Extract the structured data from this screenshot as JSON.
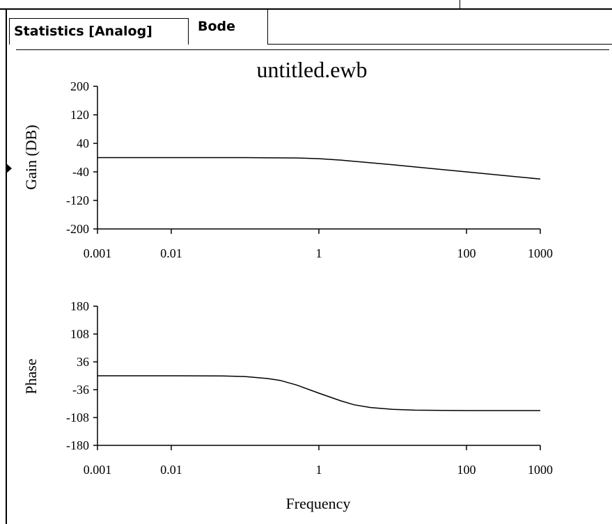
{
  "tabs": [
    {
      "label": "Statistics [Analog]"
    },
    {
      "label": "Bode"
    }
  ],
  "colors": {
    "line": "#000000",
    "background": "#ffffff"
  },
  "chart_data": [
    {
      "type": "line",
      "title": "untitled.ewb",
      "ylabel": "Gain (DB)",
      "xlabel": "",
      "x_scale": "log",
      "xlim": [
        0.001,
        1000
      ],
      "ylim": [
        -200,
        200
      ],
      "x_ticks": [
        0.001,
        0.01,
        1,
        100,
        1000
      ],
      "x_tick_labels": [
        "0.001",
        "0.01",
        "1",
        "100",
        "1000"
      ],
      "y_ticks": [
        200,
        120,
        40,
        -40,
        -120,
        -200
      ],
      "y_tick_labels": [
        "200",
        "120",
        "40",
        "-40",
        "-120",
        "-200"
      ],
      "series": [
        {
          "x": [
            0.001,
            0.01,
            0.1,
            0.5,
            1,
            2,
            10,
            100,
            1000
          ],
          "values": [
            0,
            0,
            0,
            -1,
            -3,
            -7,
            -20,
            -40,
            -60
          ]
        }
      ]
    },
    {
      "type": "line",
      "title": "",
      "ylabel": "Phase",
      "xlabel": "Frequency",
      "x_scale": "log",
      "xlim": [
        0.001,
        1000
      ],
      "ylim": [
        -180,
        180
      ],
      "x_ticks": [
        0.001,
        0.01,
        1,
        100,
        1000
      ],
      "x_tick_labels": [
        "0.001",
        "0.01",
        "1",
        "100",
        "1000"
      ],
      "y_ticks": [
        180,
        108,
        36,
        -36,
        -108,
        -180
      ],
      "y_tick_labels": [
        "180",
        "108",
        "36",
        "-36",
        "-108",
        "-180"
      ],
      "series": [
        {
          "x": [
            0.001,
            0.01,
            0.05,
            0.1,
            0.2,
            0.3,
            0.5,
            1,
            2,
            3,
            5,
            10,
            20,
            100,
            1000
          ],
          "values": [
            0,
            0,
            -0.5,
            -2,
            -7,
            -12,
            -24,
            -45,
            -65,
            -75,
            -82,
            -87,
            -89,
            -90,
            -90
          ]
        }
      ]
    }
  ]
}
